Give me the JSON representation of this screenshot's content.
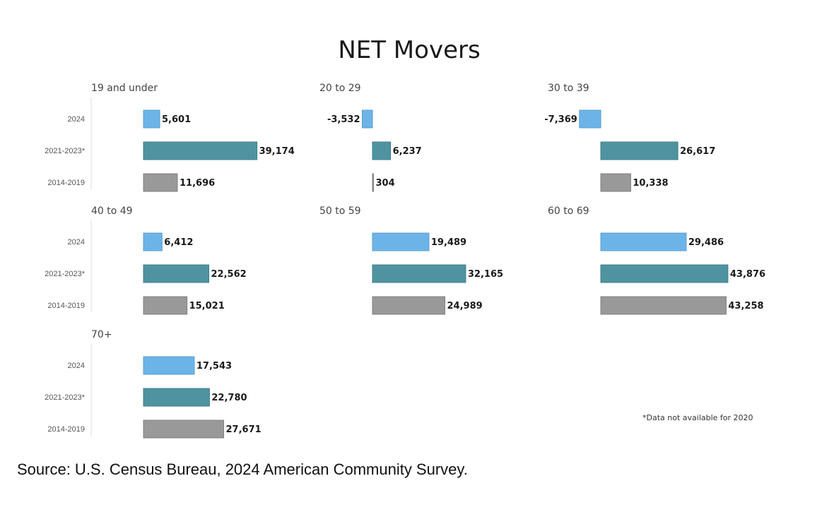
{
  "chart_data": {
    "type": "bar",
    "orientation": "horizontal",
    "title": "NET Movers",
    "series": [
      {
        "name": "2024",
        "color": "#6cb4e8"
      },
      {
        "name": "2021-2023*",
        "color": "#4f93a0"
      },
      {
        "name": "2014-2019",
        "color": "#999999"
      }
    ],
    "xlim": [
      -10000,
      45000
    ],
    "panels": [
      {
        "title": "19 and under",
        "values": [
          5601,
          39174,
          11696
        ],
        "labels": [
          "5,601",
          "39,174",
          "11,696"
        ]
      },
      {
        "title": "20 to 29",
        "values": [
          -3532,
          6237,
          304
        ],
        "labels": [
          "-3,532",
          "6,237",
          "304"
        ]
      },
      {
        "title": "30 to 39",
        "values": [
          -7369,
          26617,
          10338
        ],
        "labels": [
          "-7,369",
          "26,617",
          "10,338"
        ]
      },
      {
        "title": "40 to 49",
        "values": [
          6412,
          22562,
          15021
        ],
        "labels": [
          "6,412",
          "22,562",
          "15,021"
        ]
      },
      {
        "title": "50 to 59",
        "values": [
          19489,
          32165,
          24989
        ],
        "labels": [
          "19,489",
          "32,165",
          "24,989"
        ]
      },
      {
        "title": "60 to 69",
        "values": [
          29486,
          43876,
          43258
        ],
        "labels": [
          "29,486",
          "43,876",
          "43,258"
        ]
      },
      {
        "title": "70+",
        "values": [
          17543,
          22780,
          27671
        ],
        "labels": [
          "17,543",
          "22,780",
          "27,671"
        ]
      }
    ],
    "footnote": "*Data not available for 2020"
  },
  "source": "Source: U.S. Census Bureau, 2024 American Community Survey."
}
